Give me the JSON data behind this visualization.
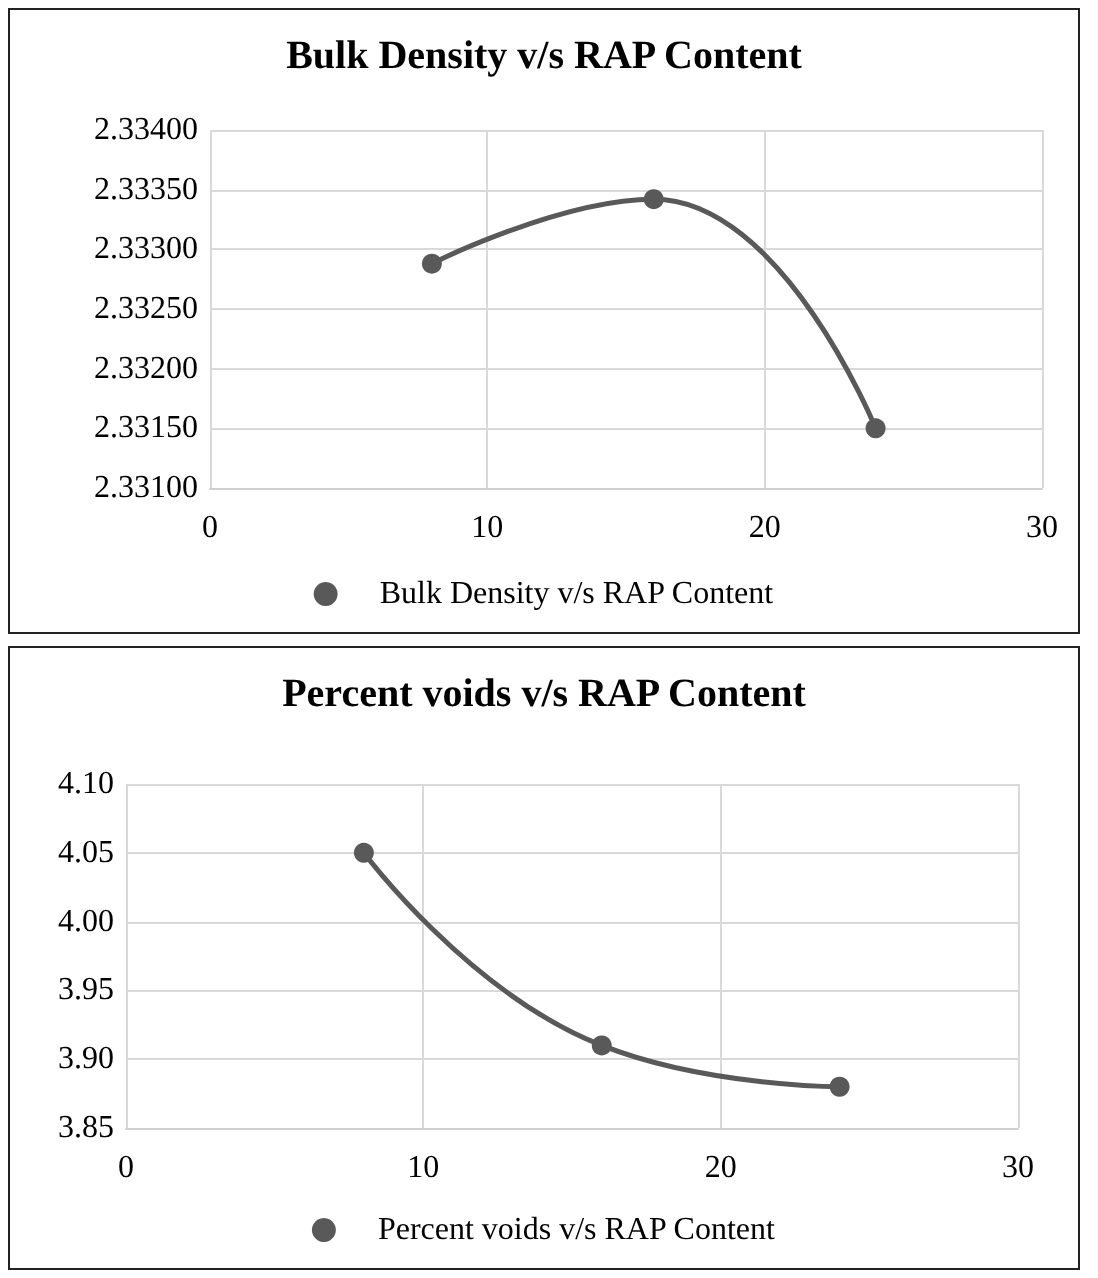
{
  "chart_data": [
    {
      "type": "line",
      "title": "Bulk Density v/s RAP Content",
      "x": [
        8,
        16,
        24
      ],
      "series": [
        {
          "name": "Bulk Density v/s RAP Content",
          "color": "#595959",
          "values": [
            2.33288,
            2.33342,
            2.3315
          ]
        }
      ],
      "xlim": [
        0,
        30
      ],
      "xticks": [
        0,
        10,
        20,
        30
      ],
      "ylim": [
        2.331,
        2.334
      ],
      "yticks": [
        {
          "value": 2.331,
          "label": "2.33100"
        },
        {
          "value": 2.3315,
          "label": "2.33150"
        },
        {
          "value": 2.332,
          "label": "2.33200"
        },
        {
          "value": 2.3325,
          "label": "2.33250"
        },
        {
          "value": 2.333,
          "label": "2.33300"
        },
        {
          "value": 2.3335,
          "label": "2.33350"
        },
        {
          "value": 2.334,
          "label": "2.33400"
        }
      ],
      "grid": true,
      "legend": "bottom",
      "marker": "circle",
      "line_style": "solid"
    },
    {
      "type": "line",
      "title": "Percent voids v/s RAP Content",
      "x": [
        8,
        16,
        24
      ],
      "series": [
        {
          "name": "Percent voids v/s RAP Content",
          "color": "#595959",
          "values": [
            4.05,
            3.91,
            3.88
          ]
        }
      ],
      "xlim": [
        0,
        30
      ],
      "xticks": [
        0,
        10,
        20,
        30
      ],
      "ylim": [
        3.85,
        4.1
      ],
      "yticks": [
        {
          "value": 3.85,
          "label": "3.85"
        },
        {
          "value": 3.9,
          "label": "3.90"
        },
        {
          "value": 3.95,
          "label": "3.95"
        },
        {
          "value": 4.0,
          "label": "4.00"
        },
        {
          "value": 4.05,
          "label": "4.05"
        },
        {
          "value": 4.1,
          "label": "4.10"
        }
      ],
      "grid": true,
      "legend": "bottom",
      "marker": "circle",
      "line_style": "solid"
    }
  ]
}
